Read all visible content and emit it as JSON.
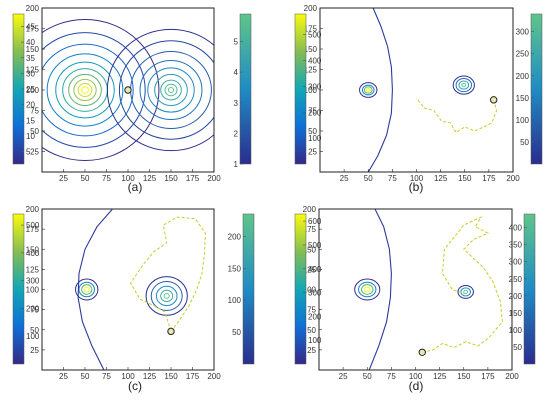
{
  "chart_data": [
    {
      "type": "contour",
      "caption": "(a)",
      "x_ticks": [
        25,
        50,
        75,
        100,
        125,
        150,
        175,
        200
      ],
      "y_ticks": [
        25,
        50,
        75,
        100,
        125,
        150,
        175,
        200
      ],
      "xlim": [
        0,
        200
      ],
      "ylim": [
        0,
        200
      ],
      "sources": [
        {
          "cx": 50,
          "cy": 100,
          "radii": [
            4,
            8,
            13,
            19,
            26,
            34,
            44,
            56,
            70,
            86
          ],
          "color": "left"
        },
        {
          "cx": 150,
          "cy": 100,
          "radii": [
            3,
            7,
            12,
            19,
            27,
            36,
            47,
            60,
            74
          ],
          "color": "right"
        }
      ],
      "boundary": [],
      "trajectory": [],
      "marker": [
        100,
        100
      ],
      "colorbar_left": {
        "ticks": [
          5,
          10,
          15,
          20,
          25,
          30,
          35,
          40,
          45
        ],
        "min": 1,
        "max": 49
      },
      "colorbar_right": {
        "ticks": [
          1,
          2,
          3,
          4,
          5
        ],
        "min": 1,
        "max": 5.9
      }
    },
    {
      "type": "contour",
      "caption": "(b)",
      "x_ticks": [
        25,
        50,
        75,
        100,
        125,
        150,
        175,
        200
      ],
      "y_ticks": [
        25,
        50,
        75,
        100,
        125,
        150,
        175,
        200
      ],
      "xlim": [
        0,
        200
      ],
      "ylim": [
        0,
        200
      ],
      "sources": [
        {
          "cx": 50,
          "cy": 100,
          "radii": [
            2,
            4,
            6,
            9
          ],
          "color": "left"
        },
        {
          "cx": 149,
          "cy": 106,
          "radii": [
            2,
            5,
            8,
            11
          ],
          "color": "right"
        }
      ],
      "boundary": [
        [
          55,
          200
        ],
        [
          63,
          178
        ],
        [
          70,
          153
        ],
        [
          74,
          128
        ],
        [
          75,
          100
        ],
        [
          74,
          72
        ],
        [
          69,
          45
        ],
        [
          60,
          20
        ],
        [
          50,
          0
        ]
      ],
      "trajectory": [
        [
          180,
          88
        ],
        [
          183,
          75
        ],
        [
          178,
          60
        ],
        [
          170,
          55
        ],
        [
          160,
          50
        ],
        [
          150,
          55
        ],
        [
          141,
          48
        ],
        [
          135,
          60
        ],
        [
          126,
          62
        ],
        [
          118,
          75
        ],
        [
          108,
          78
        ],
        [
          100,
          90
        ]
      ],
      "marker": [
        180,
        88
      ],
      "colorbar_left": {
        "ticks": [
          100,
          200,
          300,
          400,
          500
        ],
        "min": 0,
        "max": 580
      },
      "colorbar_right": {
        "ticks": [
          50,
          100,
          150,
          200,
          250,
          300
        ],
        "min": 0,
        "max": 340
      }
    },
    {
      "type": "contour",
      "caption": "(c)",
      "x_ticks": [
        25,
        50,
        75,
        100,
        125,
        150,
        175,
        200
      ],
      "y_ticks": [
        25,
        50,
        75,
        100,
        125,
        150,
        175,
        200
      ],
      "xlim": [
        0,
        200
      ],
      "ylim": [
        0,
        200
      ],
      "sources": [
        {
          "cx": 52,
          "cy": 100,
          "radii": [
            3,
            6,
            9,
            13
          ],
          "color": "left"
        },
        {
          "cx": 145,
          "cy": 92,
          "radii": [
            3,
            7,
            12,
            18,
            24
          ],
          "color": "right"
        }
      ],
      "boundary": [
        [
          82,
          200
        ],
        [
          64,
          178
        ],
        [
          50,
          150
        ],
        [
          43,
          120
        ],
        [
          42,
          90
        ],
        [
          47,
          60
        ],
        [
          58,
          30
        ],
        [
          72,
          0
        ]
      ],
      "trajectory": [
        [
          150,
          48
        ],
        [
          160,
          62
        ],
        [
          171,
          80
        ],
        [
          180,
          100
        ],
        [
          186,
          120
        ],
        [
          189,
          145
        ],
        [
          190,
          170
        ],
        [
          178,
          188
        ],
        [
          157,
          190
        ],
        [
          141,
          180
        ],
        [
          145,
          158
        ],
        [
          130,
          147
        ],
        [
          117,
          130
        ],
        [
          103,
          108
        ],
        [
          114,
          88
        ],
        [
          130,
          80
        ],
        [
          143,
          72
        ],
        [
          150,
          48
        ]
      ],
      "marker": [
        150,
        48
      ],
      "colorbar_left": {
        "ticks": [
          100,
          200,
          300,
          400,
          500
        ],
        "min": 0,
        "max": 540
      },
      "colorbar_right": {
        "ticks": [
          50,
          100,
          150,
          200
        ],
        "min": 0,
        "max": 235
      }
    },
    {
      "type": "contour",
      "caption": "(d)",
      "x_ticks": [
        25,
        50,
        75,
        100,
        125,
        150,
        175,
        200
      ],
      "y_ticks": [
        25,
        50,
        75,
        100,
        125,
        150,
        175,
        200
      ],
      "xlim": [
        0,
        200
      ],
      "ylim": [
        0,
        200
      ],
      "sources": [
        {
          "cx": 50,
          "cy": 100,
          "radii": [
            3,
            6,
            9,
            13
          ],
          "color": "left"
        },
        {
          "cx": 152,
          "cy": 97,
          "radii": [
            2,
            5,
            8
          ],
          "color": "right"
        }
      ],
      "boundary": [
        [
          58,
          200
        ],
        [
          67,
          178
        ],
        [
          73,
          150
        ],
        [
          75,
          120
        ],
        [
          74,
          90
        ],
        [
          70,
          60
        ],
        [
          62,
          30
        ],
        [
          52,
          0
        ]
      ],
      "trajectory": [
        [
          107,
          22
        ],
        [
          118,
          25
        ],
        [
          128,
          33
        ],
        [
          140,
          28
        ],
        [
          152,
          35
        ],
        [
          165,
          30
        ],
        [
          176,
          40
        ],
        [
          190,
          60
        ],
        [
          188,
          85
        ],
        [
          180,
          110
        ],
        [
          170,
          128
        ],
        [
          150,
          150
        ],
        [
          160,
          162
        ],
        [
          175,
          170
        ],
        [
          162,
          178
        ],
        [
          168,
          190
        ],
        [
          150,
          180
        ],
        [
          140,
          165
        ],
        [
          130,
          150
        ],
        [
          128,
          120
        ],
        [
          138,
          100
        ],
        [
          150,
          95
        ]
      ],
      "marker": [
        107,
        22
      ],
      "colorbar_left": {
        "ticks": [
          100,
          200,
          300,
          400,
          500,
          600
        ],
        "min": 0,
        "max": 630
      },
      "colorbar_right": {
        "ticks": [
          50,
          100,
          150,
          200,
          250,
          300,
          350,
          400
        ],
        "min": 0,
        "max": 440
      }
    }
  ]
}
